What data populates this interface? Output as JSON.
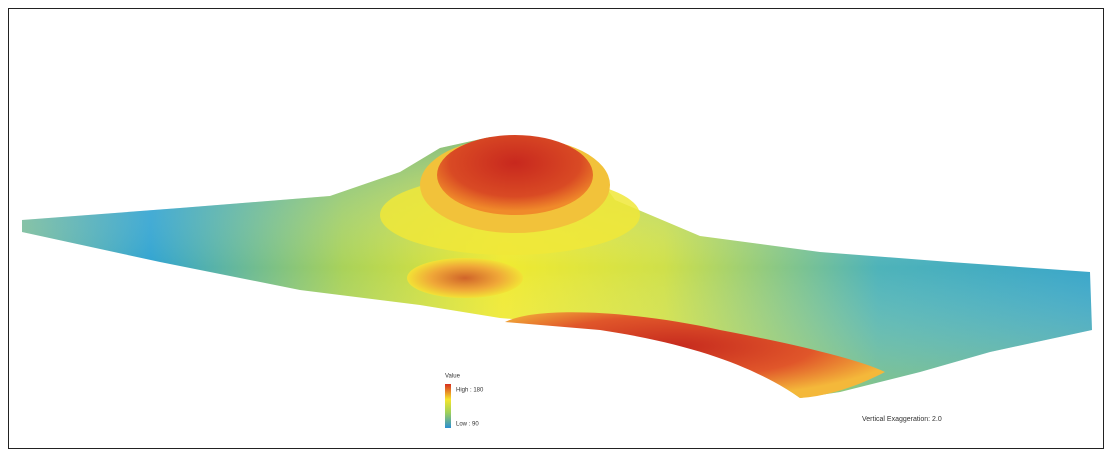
{
  "legend": {
    "title": "Value",
    "high": "High : 180",
    "low": "Low : 90"
  },
  "caption": "Vertical Exaggeration: 2.0"
}
